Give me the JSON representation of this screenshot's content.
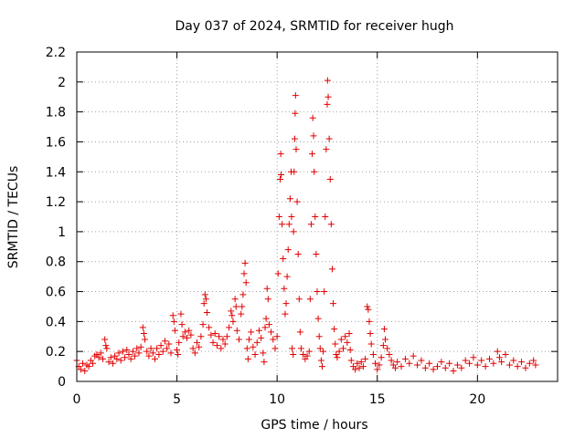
{
  "chart_data": {
    "type": "scatter",
    "title": "Day 037 of 2024, SRMTID for receiver hugh",
    "xlabel": "GPS time / hours",
    "ylabel": "SRMTID / TECUs",
    "xlim": [
      0,
      24
    ],
    "ylim": [
      0,
      2.2
    ],
    "x_ticks": [
      0,
      5,
      10,
      15,
      20
    ],
    "x_tick_labels": [
      "0",
      "5",
      "10",
      "15",
      "20"
    ],
    "y_ticks": [
      0,
      0.2,
      0.4,
      0.6,
      0.8,
      1,
      1.2,
      1.4,
      1.6,
      1.8,
      2,
      2.2
    ],
    "y_tick_labels": [
      "0",
      "0.2",
      "0.4",
      "0.6",
      "0.8",
      "1",
      "1.2",
      "1.4",
      "1.6",
      "1.8",
      "2",
      "2.2"
    ],
    "grid": true,
    "marker": "plus",
    "series": [
      {
        "name": "SRMTID",
        "color": "#e00000",
        "points": [
          [
            0.0,
            0.14
          ],
          [
            0.1,
            0.1
          ],
          [
            0.2,
            0.08
          ],
          [
            0.3,
            0.12
          ],
          [
            0.4,
            0.07
          ],
          [
            0.5,
            0.11
          ],
          [
            0.6,
            0.1
          ],
          [
            0.7,
            0.14
          ],
          [
            0.8,
            0.12
          ],
          [
            0.9,
            0.17
          ],
          [
            1.0,
            0.18
          ],
          [
            1.1,
            0.16
          ],
          [
            1.2,
            0.19
          ],
          [
            1.3,
            0.15
          ],
          [
            1.4,
            0.28
          ],
          [
            1.45,
            0.24
          ],
          [
            1.5,
            0.22
          ],
          [
            1.6,
            0.13
          ],
          [
            1.7,
            0.16
          ],
          [
            1.8,
            0.12
          ],
          [
            1.9,
            0.17
          ],
          [
            2.0,
            0.15
          ],
          [
            2.1,
            0.19
          ],
          [
            2.2,
            0.14
          ],
          [
            2.3,
            0.2
          ],
          [
            2.4,
            0.16
          ],
          [
            2.5,
            0.21
          ],
          [
            2.6,
            0.18
          ],
          [
            2.7,
            0.15
          ],
          [
            2.8,
            0.2
          ],
          [
            2.9,
            0.17
          ],
          [
            3.0,
            0.22
          ],
          [
            3.1,
            0.19
          ],
          [
            3.2,
            0.23
          ],
          [
            3.3,
            0.36
          ],
          [
            3.35,
            0.32
          ],
          [
            3.4,
            0.28
          ],
          [
            3.5,
            0.2
          ],
          [
            3.6,
            0.17
          ],
          [
            3.7,
            0.22
          ],
          [
            3.8,
            0.19
          ],
          [
            3.9,
            0.15
          ],
          [
            4.0,
            0.22
          ],
          [
            4.1,
            0.18
          ],
          [
            4.2,
            0.24
          ],
          [
            4.3,
            0.2
          ],
          [
            4.4,
            0.27
          ],
          [
            4.5,
            0.22
          ],
          [
            4.6,
            0.25
          ],
          [
            4.7,
            0.19
          ],
          [
            4.8,
            0.44
          ],
          [
            4.85,
            0.4
          ],
          [
            4.9,
            0.34
          ],
          [
            5.0,
            0.21
          ],
          [
            5.05,
            0.18
          ],
          [
            5.1,
            0.26
          ],
          [
            5.2,
            0.45
          ],
          [
            5.25,
            0.38
          ],
          [
            5.3,
            0.3
          ],
          [
            5.4,
            0.33
          ],
          [
            5.5,
            0.29
          ],
          [
            5.6,
            0.34
          ],
          [
            5.7,
            0.31
          ],
          [
            5.8,
            0.22
          ],
          [
            5.9,
            0.19
          ],
          [
            6.0,
            0.26
          ],
          [
            6.1,
            0.23
          ],
          [
            6.2,
            0.3
          ],
          [
            6.3,
            0.38
          ],
          [
            6.35,
            0.52
          ],
          [
            6.4,
            0.58
          ],
          [
            6.45,
            0.55
          ],
          [
            6.5,
            0.46
          ],
          [
            6.6,
            0.36
          ],
          [
            6.7,
            0.31
          ],
          [
            6.8,
            0.26
          ],
          [
            6.9,
            0.32
          ],
          [
            7.0,
            0.24
          ],
          [
            7.1,
            0.3
          ],
          [
            7.2,
            0.22
          ],
          [
            7.3,
            0.28
          ],
          [
            7.4,
            0.25
          ],
          [
            7.5,
            0.3
          ],
          [
            7.6,
            0.36
          ],
          [
            7.7,
            0.47
          ],
          [
            7.75,
            0.44
          ],
          [
            7.8,
            0.4
          ],
          [
            7.9,
            0.55
          ],
          [
            7.95,
            0.5
          ],
          [
            8.0,
            0.34
          ],
          [
            8.1,
            0.28
          ],
          [
            8.2,
            0.45
          ],
          [
            8.25,
            0.5
          ],
          [
            8.3,
            0.58
          ],
          [
            8.35,
            0.72
          ],
          [
            8.4,
            0.79
          ],
          [
            8.45,
            0.66
          ],
          [
            8.5,
            0.22
          ],
          [
            8.55,
            0.15
          ],
          [
            8.6,
            0.28
          ],
          [
            8.7,
            0.33
          ],
          [
            8.8,
            0.23
          ],
          [
            8.9,
            0.18
          ],
          [
            9.0,
            0.26
          ],
          [
            9.1,
            0.34
          ],
          [
            9.2,
            0.29
          ],
          [
            9.3,
            0.19
          ],
          [
            9.35,
            0.13
          ],
          [
            9.4,
            0.36
          ],
          [
            9.45,
            0.42
          ],
          [
            9.5,
            0.62
          ],
          [
            9.55,
            0.55
          ],
          [
            9.6,
            0.38
          ],
          [
            9.7,
            0.33
          ],
          [
            9.8,
            0.28
          ],
          [
            9.9,
            0.22
          ],
          [
            10.0,
            0.3
          ],
          [
            10.05,
            0.72
          ],
          [
            10.1,
            1.1
          ],
          [
            10.15,
            1.35
          ],
          [
            10.18,
            1.52
          ],
          [
            10.2,
            1.38
          ],
          [
            10.25,
            1.05
          ],
          [
            10.3,
            0.82
          ],
          [
            10.35,
            0.62
          ],
          [
            10.4,
            0.45
          ],
          [
            10.45,
            0.52
          ],
          [
            10.5,
            0.7
          ],
          [
            10.55,
            0.88
          ],
          [
            10.6,
            1.05
          ],
          [
            10.65,
            1.22
          ],
          [
            10.7,
            1.4
          ],
          [
            10.72,
            1.1
          ],
          [
            10.75,
            0.22
          ],
          [
            10.8,
            0.18
          ],
          [
            10.82,
            1.0
          ],
          [
            10.85,
            1.4
          ],
          [
            10.88,
            1.62
          ],
          [
            10.9,
            1.79
          ],
          [
            10.92,
            1.91
          ],
          [
            10.95,
            1.55
          ],
          [
            11.0,
            1.2
          ],
          [
            11.05,
            0.85
          ],
          [
            11.1,
            0.55
          ],
          [
            11.15,
            0.33
          ],
          [
            11.2,
            0.22
          ],
          [
            11.3,
            0.18
          ],
          [
            11.4,
            0.15
          ],
          [
            11.5,
            0.17
          ],
          [
            11.6,
            0.2
          ],
          [
            11.65,
            0.55
          ],
          [
            11.7,
            1.05
          ],
          [
            11.75,
            1.52
          ],
          [
            11.78,
            1.76
          ],
          [
            11.82,
            1.64
          ],
          [
            11.85,
            1.4
          ],
          [
            11.9,
            1.1
          ],
          [
            11.95,
            0.85
          ],
          [
            12.0,
            0.6
          ],
          [
            12.05,
            0.42
          ],
          [
            12.1,
            0.3
          ],
          [
            12.15,
            0.22
          ],
          [
            12.2,
            0.14
          ],
          [
            12.25,
            0.1
          ],
          [
            12.3,
            0.2
          ],
          [
            12.35,
            0.6
          ],
          [
            12.4,
            1.1
          ],
          [
            12.45,
            1.55
          ],
          [
            12.5,
            1.85
          ],
          [
            12.52,
            2.01
          ],
          [
            12.55,
            1.9
          ],
          [
            12.6,
            1.62
          ],
          [
            12.65,
            1.35
          ],
          [
            12.7,
            1.05
          ],
          [
            12.75,
            0.75
          ],
          [
            12.8,
            0.52
          ],
          [
            12.85,
            0.35
          ],
          [
            12.9,
            0.25
          ],
          [
            12.95,
            0.18
          ],
          [
            13.0,
            0.16
          ],
          [
            13.1,
            0.2
          ],
          [
            13.2,
            0.28
          ],
          [
            13.3,
            0.22
          ],
          [
            13.4,
            0.3
          ],
          [
            13.5,
            0.26
          ],
          [
            13.6,
            0.32
          ],
          [
            13.65,
            0.21
          ],
          [
            13.7,
            0.14
          ],
          [
            13.8,
            0.1
          ],
          [
            13.9,
            0.08
          ],
          [
            14.0,
            0.12
          ],
          [
            14.1,
            0.09
          ],
          [
            14.2,
            0.13
          ],
          [
            14.3,
            0.1
          ],
          [
            14.4,
            0.15
          ],
          [
            14.5,
            0.5
          ],
          [
            14.55,
            0.48
          ],
          [
            14.6,
            0.4
          ],
          [
            14.65,
            0.32
          ],
          [
            14.7,
            0.25
          ],
          [
            14.8,
            0.18
          ],
          [
            14.9,
            0.12
          ],
          [
            15.0,
            0.08
          ],
          [
            15.1,
            0.11
          ],
          [
            15.2,
            0.16
          ],
          [
            15.3,
            0.24
          ],
          [
            15.35,
            0.35
          ],
          [
            15.4,
            0.28
          ],
          [
            15.5,
            0.22
          ],
          [
            15.6,
            0.18
          ],
          [
            15.7,
            0.14
          ],
          [
            15.8,
            0.11
          ],
          [
            15.9,
            0.09
          ],
          [
            16.0,
            0.13
          ],
          [
            16.2,
            0.1
          ],
          [
            16.4,
            0.15
          ],
          [
            16.6,
            0.12
          ],
          [
            16.8,
            0.17
          ],
          [
            17.0,
            0.11
          ],
          [
            17.2,
            0.14
          ],
          [
            17.4,
            0.09
          ],
          [
            17.6,
            0.12
          ],
          [
            17.8,
            0.08
          ],
          [
            18.0,
            0.1
          ],
          [
            18.2,
            0.13
          ],
          [
            18.4,
            0.09
          ],
          [
            18.6,
            0.12
          ],
          [
            18.8,
            0.07
          ],
          [
            19.0,
            0.11
          ],
          [
            19.2,
            0.09
          ],
          [
            19.4,
            0.14
          ],
          [
            19.6,
            0.12
          ],
          [
            19.8,
            0.16
          ],
          [
            20.0,
            0.11
          ],
          [
            20.2,
            0.14
          ],
          [
            20.4,
            0.1
          ],
          [
            20.6,
            0.15
          ],
          [
            20.8,
            0.12
          ],
          [
            21.0,
            0.2
          ],
          [
            21.1,
            0.16
          ],
          [
            21.2,
            0.13
          ],
          [
            21.4,
            0.18
          ],
          [
            21.6,
            0.11
          ],
          [
            21.8,
            0.14
          ],
          [
            22.0,
            0.1
          ],
          [
            22.2,
            0.13
          ],
          [
            22.4,
            0.09
          ],
          [
            22.6,
            0.12
          ],
          [
            22.8,
            0.14
          ],
          [
            22.9,
            0.11
          ]
        ]
      }
    ]
  }
}
